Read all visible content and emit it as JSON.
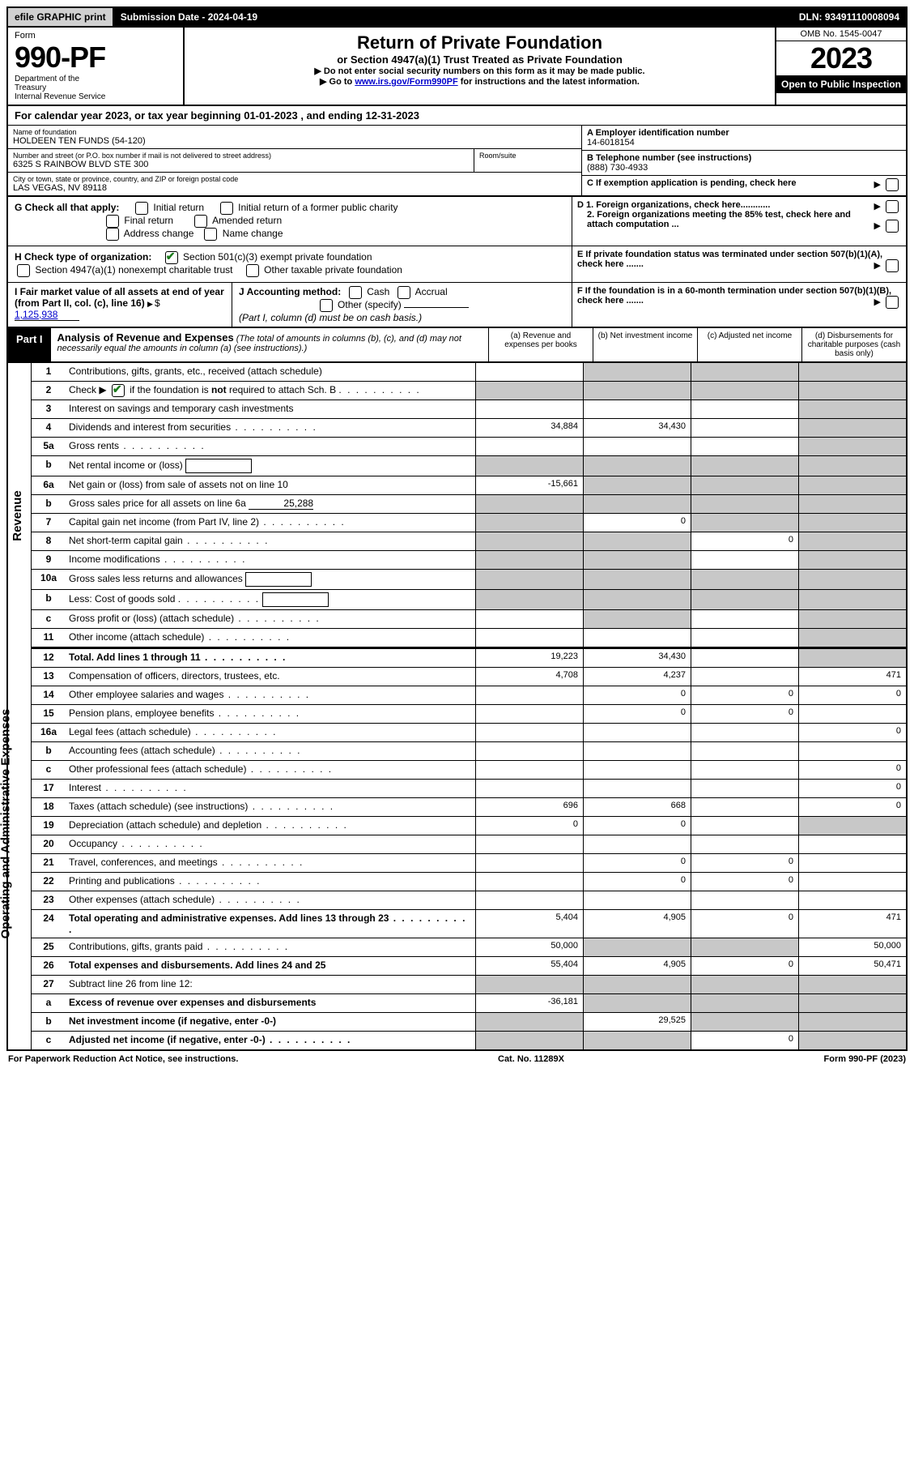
{
  "top": {
    "efile": "efile GRAPHIC print",
    "sub_label": "Submission Date - 2024-04-19",
    "dln": "DLN: 93491110008094"
  },
  "header": {
    "form_word": "Form",
    "form_num": "990-PF",
    "dept": "Department of the Treasury\nInternal Revenue Service",
    "title": "Return of Private Foundation",
    "subtitle": "or Section 4947(a)(1) Trust Treated as Private Foundation",
    "note1": "▶ Do not enter social security numbers on this form as it may be made public.",
    "note2_pre": "▶ Go to ",
    "note2_link": "www.irs.gov/Form990PF",
    "note2_post": " for instructions and the latest information.",
    "omb": "OMB No. 1545-0047",
    "year": "2023",
    "open": "Open to Public Inspection"
  },
  "calyear": "For calendar year 2023, or tax year beginning 01-01-2023          , and ending 12-31-2023",
  "info": {
    "name_label": "Name of foundation",
    "name": "HOLDEEN TEN FUNDS (54-120)",
    "addr_label": "Number and street (or P.O. box number if mail is not delivered to street address)",
    "addr": "6325 S RAINBOW BLVD STE 300",
    "room_label": "Room/suite",
    "city_label": "City or town, state or province, country, and ZIP or foreign postal code",
    "city": "LAS VEGAS, NV  89118",
    "ein_label": "A Employer identification number",
    "ein": "14-6018154",
    "tel_label": "B Telephone number (see instructions)",
    "tel": "(888) 730-4933",
    "c_label": "C If exemption application is pending, check here",
    "d1": "D 1. Foreign organizations, check here............",
    "d2": "2. Foreign organizations meeting the 85% test, check here and attach computation ...",
    "e_label": "E  If private foundation status was terminated under section 507(b)(1)(A), check here .......",
    "f_label": "F  If the foundation is in a 60-month termination under section 507(b)(1)(B), check here .......",
    "g_label": "G Check all that apply:",
    "g_opts": [
      "Initial return",
      "Final return",
      "Address change",
      "Initial return of a former public charity",
      "Amended return",
      "Name change"
    ],
    "h_label": "H Check type of organization:",
    "h_opt1": "Section 501(c)(3) exempt private foundation",
    "h_opt2": "Section 4947(a)(1) nonexempt charitable trust",
    "h_opt3": "Other taxable private foundation",
    "i_label": "I Fair market value of all assets at end of year (from Part II, col. (c), line 16)",
    "i_val": "1,125,938",
    "j_label": "J Accounting method:",
    "j_cash": "Cash",
    "j_accrual": "Accrual",
    "j_other": "Other (specify)",
    "j_note": "(Part I, column (d) must be on cash basis.)"
  },
  "part1": {
    "label": "Part I",
    "title": "Analysis of Revenue and Expenses",
    "title_note": " (The total of amounts in columns (b), (c), and (d) may not necessarily equal the amounts in column (a) (see instructions).)",
    "col_a": "(a)  Revenue and expenses per books",
    "col_b": "(b)  Net investment income",
    "col_c": "(c)  Adjusted net income",
    "col_d": "(d)  Disbursements for charitable purposes (cash basis only)"
  },
  "side": {
    "revenue": "Revenue",
    "opex": "Operating and Administrative Expenses"
  },
  "rows": [
    {
      "n": "1",
      "label": "Contributions, gifts, grants, etc., received (attach schedule)",
      "a": "",
      "b": "shade",
      "c": "shade",
      "d": "shade"
    },
    {
      "n": "2",
      "label": "Check ▶ ☑ if the foundation is not required to attach Sch. B",
      "dots": true,
      "a": "shade",
      "b": "shade",
      "c": "shade",
      "d": "shade",
      "check2": true
    },
    {
      "n": "3",
      "label": "Interest on savings and temporary cash investments",
      "a": "",
      "b": "",
      "c": "",
      "d": "shade"
    },
    {
      "n": "4",
      "label": "Dividends and interest from securities",
      "dots": true,
      "a": "34,884",
      "b": "34,430",
      "c": "",
      "d": "shade"
    },
    {
      "n": "5a",
      "label": "Gross rents",
      "dots": true,
      "a": "",
      "b": "",
      "c": "",
      "d": "shade"
    },
    {
      "n": "b",
      "label": "Net rental income or (loss)",
      "inlinebox": true,
      "a": "shade",
      "b": "shade",
      "c": "shade",
      "d": "shade"
    },
    {
      "n": "6a",
      "label": "Net gain or (loss) from sale of assets not on line 10",
      "a": "-15,661",
      "b": "shade",
      "c": "shade",
      "d": "shade"
    },
    {
      "n": "b",
      "label": "Gross sales price for all assets on line 6a",
      "inlineval": "25,288",
      "a": "shade",
      "b": "shade",
      "c": "shade",
      "d": "shade"
    },
    {
      "n": "7",
      "label": "Capital gain net income (from Part IV, line 2)",
      "dots": true,
      "a": "shade",
      "b": "0",
      "c": "shade",
      "d": "shade"
    },
    {
      "n": "8",
      "label": "Net short-term capital gain",
      "dots": true,
      "a": "shade",
      "b": "shade",
      "c": "0",
      "d": "shade"
    },
    {
      "n": "9",
      "label": "Income modifications",
      "dots": true,
      "a": "shade",
      "b": "shade",
      "c": "",
      "d": "shade"
    },
    {
      "n": "10a",
      "label": "Gross sales less returns and allowances",
      "inlinebox": true,
      "a": "shade",
      "b": "shade",
      "c": "shade",
      "d": "shade"
    },
    {
      "n": "b",
      "label": "Less: Cost of goods sold",
      "dots": true,
      "inlinebox": true,
      "a": "shade",
      "b": "shade",
      "c": "shade",
      "d": "shade"
    },
    {
      "n": "c",
      "label": "Gross profit or (loss) (attach schedule)",
      "dots": true,
      "a": "",
      "b": "shade",
      "c": "",
      "d": "shade"
    },
    {
      "n": "11",
      "label": "Other income (attach schedule)",
      "dots": true,
      "a": "",
      "b": "",
      "c": "",
      "d": "shade"
    },
    {
      "n": "12",
      "label": "Total. Add lines 1 through 11",
      "dots": true,
      "bold": true,
      "a": "19,223",
      "b": "34,430",
      "c": "",
      "d": "shade"
    },
    {
      "n": "13",
      "label": "Compensation of officers, directors, trustees, etc.",
      "a": "4,708",
      "b": "4,237",
      "c": "",
      "d": "471"
    },
    {
      "n": "14",
      "label": "Other employee salaries and wages",
      "dots": true,
      "a": "",
      "b": "0",
      "c": "0",
      "d": "0"
    },
    {
      "n": "15",
      "label": "Pension plans, employee benefits",
      "dots": true,
      "a": "",
      "b": "0",
      "c": "0",
      "d": ""
    },
    {
      "n": "16a",
      "label": "Legal fees (attach schedule)",
      "dots": true,
      "a": "",
      "b": "",
      "c": "",
      "d": "0"
    },
    {
      "n": "b",
      "label": "Accounting fees (attach schedule)",
      "dots": true,
      "a": "",
      "b": "",
      "c": "",
      "d": ""
    },
    {
      "n": "c",
      "label": "Other professional fees (attach schedule)",
      "dots": true,
      "a": "",
      "b": "",
      "c": "",
      "d": "0"
    },
    {
      "n": "17",
      "label": "Interest",
      "dots": true,
      "a": "",
      "b": "",
      "c": "",
      "d": "0"
    },
    {
      "n": "18",
      "label": "Taxes (attach schedule) (see instructions)",
      "dots": true,
      "a": "696",
      "b": "668",
      "c": "",
      "d": "0"
    },
    {
      "n": "19",
      "label": "Depreciation (attach schedule) and depletion",
      "dots": true,
      "a": "0",
      "b": "0",
      "c": "",
      "d": "shade"
    },
    {
      "n": "20",
      "label": "Occupancy",
      "dots": true,
      "a": "",
      "b": "",
      "c": "",
      "d": ""
    },
    {
      "n": "21",
      "label": "Travel, conferences, and meetings",
      "dots": true,
      "a": "",
      "b": "0",
      "c": "0",
      "d": ""
    },
    {
      "n": "22",
      "label": "Printing and publications",
      "dots": true,
      "a": "",
      "b": "0",
      "c": "0",
      "d": ""
    },
    {
      "n": "23",
      "label": "Other expenses (attach schedule)",
      "dots": true,
      "a": "",
      "b": "",
      "c": "",
      "d": ""
    },
    {
      "n": "24",
      "label": "Total operating and administrative expenses. Add lines 13 through 23",
      "dots": true,
      "bold": true,
      "a": "5,404",
      "b": "4,905",
      "c": "0",
      "d": "471"
    },
    {
      "n": "25",
      "label": "Contributions, gifts, grants paid",
      "dots": true,
      "a": "50,000",
      "b": "shade",
      "c": "shade",
      "d": "50,000"
    },
    {
      "n": "26",
      "label": "Total expenses and disbursements. Add lines 24 and 25",
      "bold": true,
      "a": "55,404",
      "b": "4,905",
      "c": "0",
      "d": "50,471"
    },
    {
      "n": "27",
      "label": "Subtract line 26 from line 12:",
      "a": "shade",
      "b": "shade",
      "c": "shade",
      "d": "shade"
    },
    {
      "n": "a",
      "label": "Excess of revenue over expenses and disbursements",
      "bold": true,
      "a": "-36,181",
      "b": "shade",
      "c": "shade",
      "d": "shade"
    },
    {
      "n": "b",
      "label": "Net investment income (if negative, enter -0-)",
      "bold": true,
      "a": "shade",
      "b": "29,525",
      "c": "shade",
      "d": "shade"
    },
    {
      "n": "c",
      "label": "Adjusted net income (if negative, enter -0-)",
      "dots": true,
      "bold": true,
      "a": "shade",
      "b": "shade",
      "c": "0",
      "d": "shade"
    }
  ],
  "footer": {
    "left": "For Paperwork Reduction Act Notice, see instructions.",
    "center": "Cat. No. 11289X",
    "right": "Form 990-PF (2023)"
  }
}
